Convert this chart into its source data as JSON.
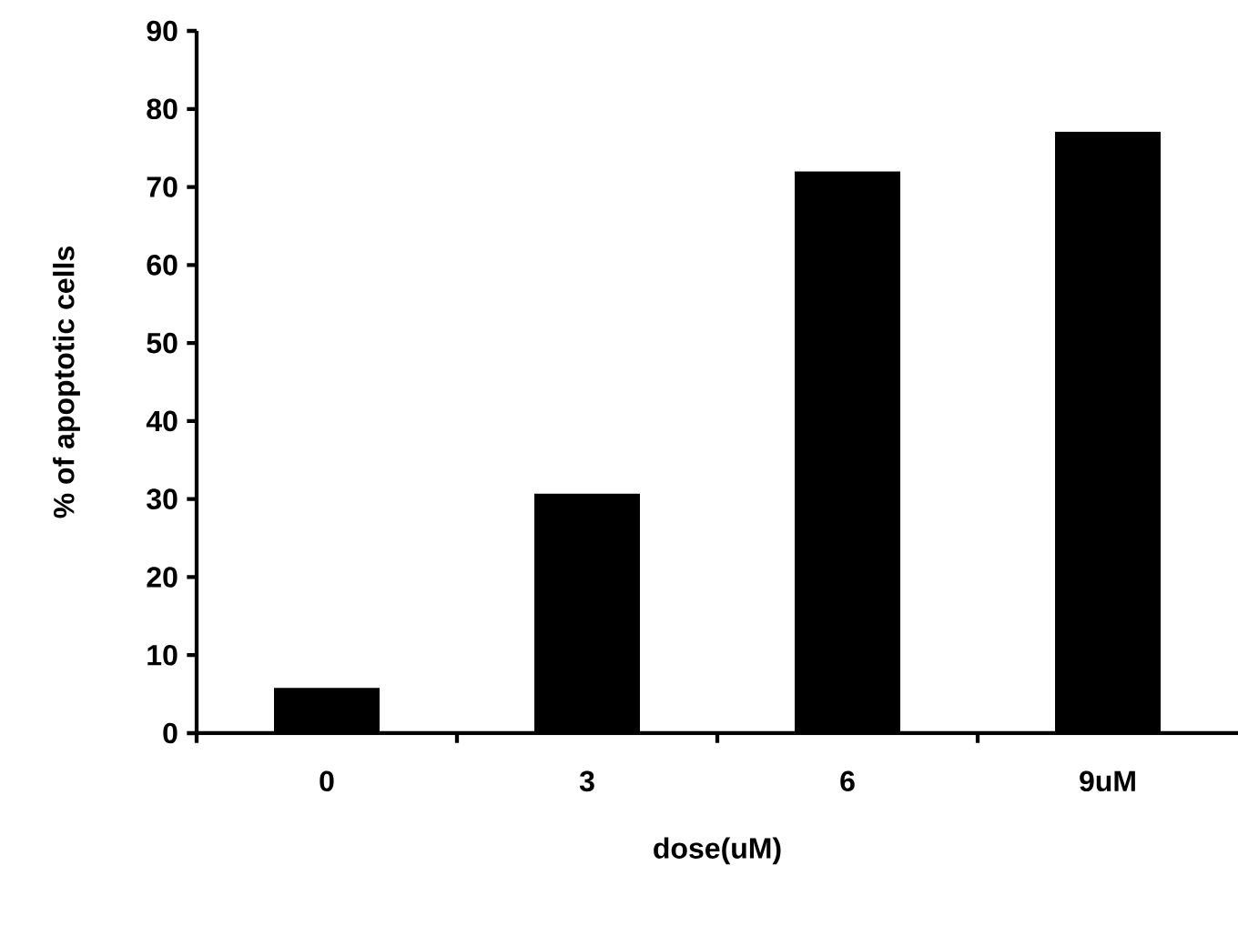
{
  "chart_data": {
    "type": "bar",
    "xlabel": "dose(uM)",
    "ylabel": "% of apoptotic cells",
    "categories": [
      "0",
      "3",
      "6",
      "9uM"
    ],
    "values": [
      5.8,
      30.7,
      72.0,
      77.1
    ],
    "color": "#000000",
    "ylim": [
      0,
      90
    ],
    "yticks": [
      0,
      10,
      20,
      30,
      40,
      50,
      60,
      70,
      80,
      90
    ],
    "grid": false
  }
}
